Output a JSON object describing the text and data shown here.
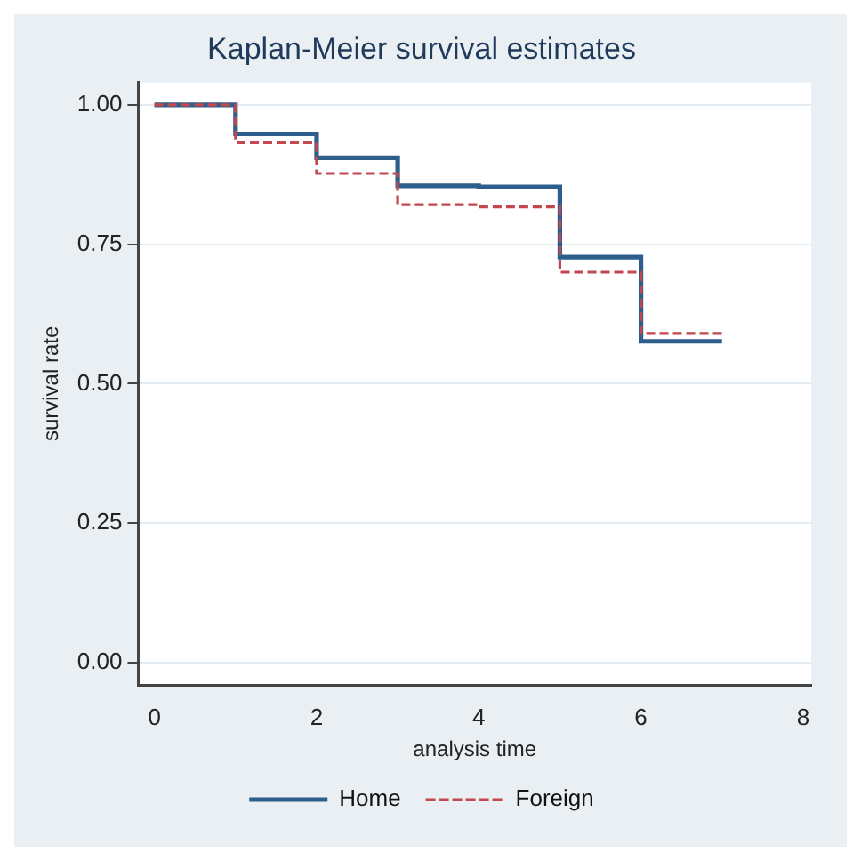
{
  "chart_data": {
    "type": "step",
    "title": "Kaplan-Meier survival estimates",
    "xlabel": "analysis time",
    "ylabel": "survival rate",
    "x": [
      0,
      1,
      2,
      3,
      4,
      5,
      6,
      7
    ],
    "series": [
      {
        "name": "Home",
        "color": "#2e5f8c",
        "line_style": "solid",
        "values": [
          1.0,
          0.948,
          0.905,
          0.855,
          0.853,
          0.727,
          0.576,
          0.576
        ]
      },
      {
        "name": "Foreign",
        "color": "#c2474f",
        "line_style": "dashed",
        "values": [
          1.0,
          0.932,
          0.877,
          0.821,
          0.817,
          0.7,
          0.59,
          0.59
        ]
      }
    ],
    "xlim": [
      -0.2,
      8.1
    ],
    "xticks": [
      0,
      2,
      4,
      6,
      8
    ],
    "ylim": [
      -0.04,
      1.04
    ],
    "yticks": [
      {
        "value": 0,
        "label": "0.00"
      },
      {
        "value": 0.25,
        "label": "0.25"
      },
      {
        "value": 0.5,
        "label": "0.50"
      },
      {
        "value": 0.75,
        "label": "0.75"
      },
      {
        "value": 1,
        "label": "1.00"
      }
    ],
    "grid": "y",
    "legend": "bottom",
    "marker": "none"
  }
}
